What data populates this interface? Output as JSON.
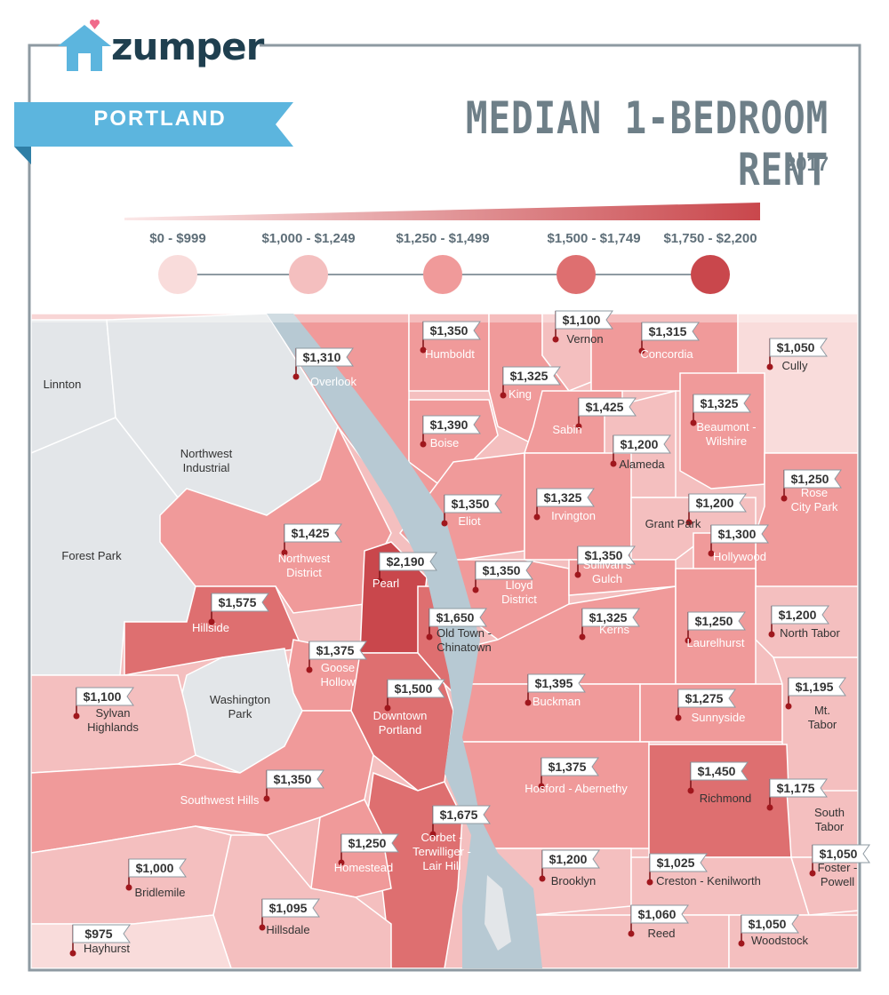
{
  "brand": {
    "name": "zumper",
    "logo_icon": "house-heart-logo-icon"
  },
  "header": {
    "city": "PORTLAND",
    "title": "MEDIAN 1-BEDROOM RENT",
    "year": "2017"
  },
  "legend": {
    "ranges": [
      {
        "label": "$0 - $999",
        "color": "#f9dcdb"
      },
      {
        "label": "$1,000 - $1,249",
        "color": "#f4bfbf"
      },
      {
        "label": "$1,250 - $1,499",
        "color": "#f09a9a"
      },
      {
        "label": "$1,500 - $1,749",
        "color": "#de6f70"
      },
      {
        "label": "$1,750 - $2,200",
        "color": "#c9474c"
      }
    ]
  },
  "colors": {
    "river": "#b7c9d3",
    "no_data": "#e3e6e9",
    "frame": "#8e9aa2",
    "ribbon": "#5cb5de",
    "ribbon_shadow": "#2f7fa6",
    "marker": "#a0171d"
  },
  "neighborhoods": [
    {
      "name": "Linnton",
      "price": ""
    },
    {
      "name": "Northwest Industrial",
      "price": ""
    },
    {
      "name": "Forest Park",
      "price": ""
    },
    {
      "name": "Washington Park",
      "price": ""
    },
    {
      "name": "Overlook",
      "price": "$1,310"
    },
    {
      "name": "Humboldt",
      "price": "$1,350"
    },
    {
      "name": "Vernon",
      "price": "$1,100"
    },
    {
      "name": "Concordia",
      "price": "$1,315"
    },
    {
      "name": "Cully",
      "price": "$1,050"
    },
    {
      "name": "King",
      "price": "$1,325"
    },
    {
      "name": "Sabin",
      "price": "$1,425"
    },
    {
      "name": "Beaumont - Wilshire",
      "price": "$1,325"
    },
    {
      "name": "Boise",
      "price": "$1,390"
    },
    {
      "name": "Alameda",
      "price": "$1,200"
    },
    {
      "name": "Rose City Park",
      "price": "$1,250"
    },
    {
      "name": "Eliot",
      "price": "$1,350"
    },
    {
      "name": "Irvington",
      "price": "$1,325"
    },
    {
      "name": "Grant Park",
      "price": "$1,200"
    },
    {
      "name": "Hollywood",
      "price": "$1,300"
    },
    {
      "name": "Northwest District",
      "price": "$1,425"
    },
    {
      "name": "Pearl",
      "price": "$2,190"
    },
    {
      "name": "Lloyd District",
      "price": "$1,350"
    },
    {
      "name": "Sullivan's Gulch",
      "price": "$1,350"
    },
    {
      "name": "Hillside",
      "price": "$1,575"
    },
    {
      "name": "Old Town - Chinatown",
      "price": "$1,650"
    },
    {
      "name": "Kerns",
      "price": "$1,325"
    },
    {
      "name": "Laurelhurst",
      "price": "$1,250"
    },
    {
      "name": "North Tabor",
      "price": "$1,200"
    },
    {
      "name": "Goose Hollow",
      "price": "$1,375"
    },
    {
      "name": "Downtown Portland",
      "price": "$1,500"
    },
    {
      "name": "Buckman",
      "price": "$1,395"
    },
    {
      "name": "Sunnyside",
      "price": "$1,275"
    },
    {
      "name": "Mt. Tabor",
      "price": "$1,195"
    },
    {
      "name": "Sylvan Highlands",
      "price": "$1,100"
    },
    {
      "name": "Hosford - Abernethy",
      "price": "$1,375"
    },
    {
      "name": "Richmond",
      "price": "$1,450"
    },
    {
      "name": "South Tabor",
      "price": "$1,175"
    },
    {
      "name": "Southwest Hills",
      "price": "$1,350"
    },
    {
      "name": "Corbet - Terwilliger - Lair Hill",
      "price": "$1,675"
    },
    {
      "name": "Homestead",
      "price": "$1,250"
    },
    {
      "name": "Brooklyn",
      "price": "$1,200"
    },
    {
      "name": "Creston - Kenilworth",
      "price": "$1,025"
    },
    {
      "name": "Foster - Powell",
      "price": "$1,050"
    },
    {
      "name": "Bridlemile",
      "price": "$1,000"
    },
    {
      "name": "Hillsdale",
      "price": "$1,095"
    },
    {
      "name": "Reed",
      "price": "$1,060"
    },
    {
      "name": "Woodstock",
      "price": "$1,050"
    },
    {
      "name": "Hayhurst",
      "price": "$975"
    }
  ]
}
